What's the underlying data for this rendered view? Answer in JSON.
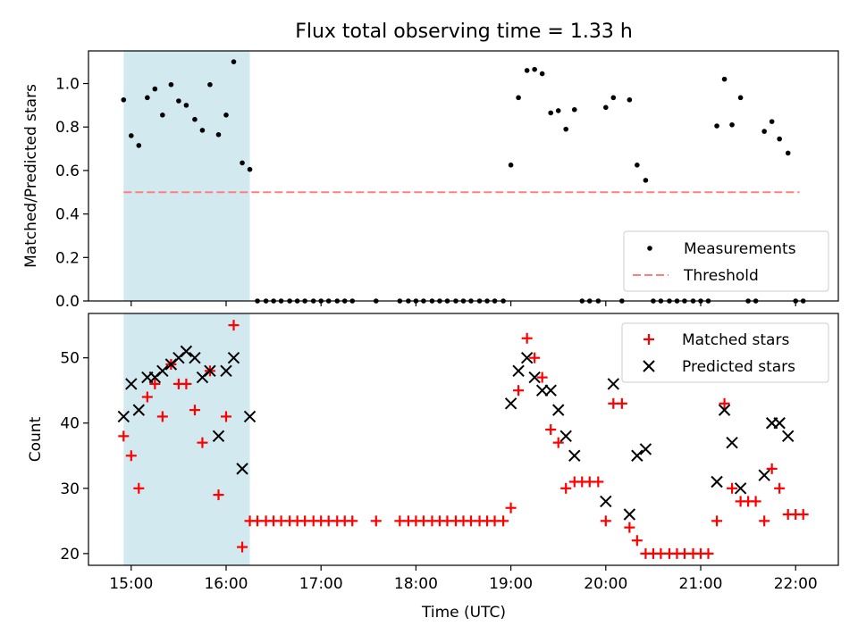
{
  "chart_data": [
    {
      "type": "scatter",
      "title": "Flux total observing time = 1.33 h",
      "xlabel": "",
      "ylabel": "Matched/Predicted stars",
      "x_unit": "time of day (UTC), hours",
      "xlim": [
        14.55,
        22.45
      ],
      "ylim": [
        0.0,
        1.15
      ],
      "yticks": [
        0.0,
        0.2,
        0.4,
        0.6,
        0.8,
        1.0
      ],
      "ytick_labels": [
        "0.0",
        "0.2",
        "0.4",
        "0.6",
        "0.8",
        "1.0"
      ],
      "shaded_region": {
        "x": [
          14.92,
          16.25
        ],
        "color": "#d3e9f0"
      },
      "legend": {
        "position": "lower-right"
      },
      "series": [
        {
          "name": "Measurements",
          "color": "#000000",
          "marker": "dot",
          "x": [
            14.92,
            15.0,
            15.08,
            15.17,
            15.25,
            15.33,
            15.42,
            15.5,
            15.58,
            15.67,
            15.75,
            15.83,
            15.92,
            16.0,
            16.08,
            16.17,
            16.25,
            16.33,
            16.42,
            16.5,
            16.58,
            16.67,
            16.75,
            16.83,
            16.92,
            17.0,
            17.08,
            17.17,
            17.25,
            17.33,
            17.58,
            17.83,
            17.92,
            18.0,
            18.08,
            18.17,
            18.25,
            18.33,
            18.42,
            18.5,
            18.58,
            18.67,
            18.75,
            18.83,
            18.92,
            19.0,
            19.08,
            19.17,
            19.25,
            19.33,
            19.42,
            19.5,
            19.58,
            19.67,
            19.75,
            19.83,
            19.92,
            20.0,
            20.08,
            20.17,
            20.25,
            20.33,
            20.42,
            20.5,
            20.58,
            20.67,
            20.75,
            20.83,
            20.92,
            21.0,
            21.08,
            21.17,
            21.25,
            21.33,
            21.42,
            21.5,
            21.58,
            21.67,
            21.75,
            21.83,
            21.92,
            22.0,
            22.08
          ],
          "y": [
            0.925,
            0.76,
            0.715,
            0.935,
            0.975,
            0.855,
            0.995,
            0.92,
            0.9,
            0.835,
            0.785,
            0.995,
            0.765,
            0.855,
            1.1,
            0.635,
            0.605,
            0,
            0,
            0,
            0,
            0,
            0,
            0,
            0,
            0,
            0,
            0,
            0,
            0,
            0,
            0,
            0,
            0,
            0,
            0,
            0,
            0,
            0,
            0,
            0,
            0,
            0,
            0,
            0,
            0.625,
            0.935,
            1.06,
            1.065,
            1.045,
            0.865,
            0.875,
            0.79,
            0.88,
            0,
            0,
            0,
            0.89,
            0.935,
            0,
            0.925,
            0.625,
            0.555,
            0,
            0,
            0,
            0,
            0,
            0,
            0,
            0,
            0.805,
            1.02,
            0.81,
            0.935,
            0,
            0,
            0.78,
            0.825,
            0.745,
            0.68,
            0,
            0
          ]
        },
        {
          "name": "Threshold",
          "color": "#ff7f7f",
          "style": "dashed",
          "x": [
            14.92,
            22.04
          ],
          "y": [
            0.5,
            0.5
          ]
        }
      ]
    },
    {
      "type": "scatter",
      "title": "",
      "xlabel": "Time (UTC)",
      "ylabel": "Count",
      "x_unit": "time of day (UTC), hours",
      "xlim": [
        14.55,
        22.45
      ],
      "ylim": [
        18.2,
        56.8
      ],
      "yticks": [
        20,
        30,
        40,
        50
      ],
      "ytick_labels": [
        "20",
        "30",
        "40",
        "50"
      ],
      "xticks": [
        15,
        16,
        17,
        18,
        19,
        20,
        21,
        22
      ],
      "xtick_labels": [
        "15:00",
        "16:00",
        "17:00",
        "18:00",
        "19:00",
        "20:00",
        "21:00",
        "22:00"
      ],
      "shaded_region": {
        "x": [
          14.92,
          16.25
        ],
        "color": "#d3e9f0"
      },
      "legend": {
        "position": "upper-right"
      },
      "series": [
        {
          "name": "Matched stars",
          "color": "#ff0000",
          "marker": "plus",
          "x": [
            14.92,
            15.0,
            15.08,
            15.17,
            15.25,
            15.33,
            15.42,
            15.5,
            15.58,
            15.67,
            15.75,
            15.83,
            15.92,
            16.0,
            16.08,
            16.17,
            16.25,
            16.33,
            16.42,
            16.5,
            16.58,
            16.67,
            16.75,
            16.83,
            16.92,
            17.0,
            17.08,
            17.17,
            17.25,
            17.33,
            17.58,
            17.83,
            17.92,
            18.0,
            18.08,
            18.17,
            18.25,
            18.33,
            18.42,
            18.5,
            18.58,
            18.67,
            18.75,
            18.83,
            18.92,
            19.0,
            19.08,
            19.17,
            19.25,
            19.33,
            19.42,
            19.5,
            19.58,
            19.67,
            19.75,
            19.83,
            19.92,
            20.0,
            20.08,
            20.17,
            20.25,
            20.33,
            20.42,
            20.5,
            20.58,
            20.67,
            20.75,
            20.83,
            20.92,
            21.0,
            21.08,
            21.17,
            21.25,
            21.33,
            21.42,
            21.5,
            21.58,
            21.67,
            21.75,
            21.83,
            21.92,
            22.0,
            22.08
          ],
          "y": [
            38,
            35,
            30,
            44,
            46,
            41,
            49,
            46,
            46,
            42,
            37,
            48,
            29,
            41,
            55,
            21,
            25,
            25,
            25,
            25,
            25,
            25,
            25,
            25,
            25,
            25,
            25,
            25,
            25,
            25,
            25,
            25,
            25,
            25,
            25,
            25,
            25,
            25,
            25,
            25,
            25,
            25,
            25,
            25,
            25,
            27,
            45,
            53,
            50,
            47,
            39,
            37,
            30,
            31,
            31,
            31,
            31,
            25,
            43,
            43,
            24,
            22,
            20,
            20,
            20,
            20,
            20,
            20,
            20,
            20,
            20,
            25,
            43,
            30,
            28,
            28,
            28,
            25,
            33,
            30,
            26,
            26,
            26
          ]
        },
        {
          "name": "Predicted stars",
          "color": "#000000",
          "marker": "x",
          "x": [
            14.92,
            15.0,
            15.08,
            15.17,
            15.25,
            15.33,
            15.42,
            15.5,
            15.58,
            15.67,
            15.75,
            15.83,
            15.92,
            16.0,
            16.08,
            16.17,
            16.25,
            19.0,
            19.08,
            19.17,
            19.25,
            19.33,
            19.42,
            19.5,
            19.58,
            19.67,
            20.0,
            20.08,
            20.25,
            20.33,
            20.42,
            21.17,
            21.25,
            21.33,
            21.42,
            21.67,
            21.75,
            21.83,
            21.92
          ],
          "y": [
            41,
            46,
            42,
            47,
            47,
            48,
            49,
            50,
            51,
            50,
            47,
            48,
            38,
            48,
            50,
            33,
            41,
            43,
            48,
            50,
            47,
            45,
            45,
            42,
            38,
            35,
            28,
            46,
            26,
            35,
            36,
            31,
            42,
            37,
            30,
            32,
            40,
            40,
            38
          ]
        }
      ]
    }
  ]
}
